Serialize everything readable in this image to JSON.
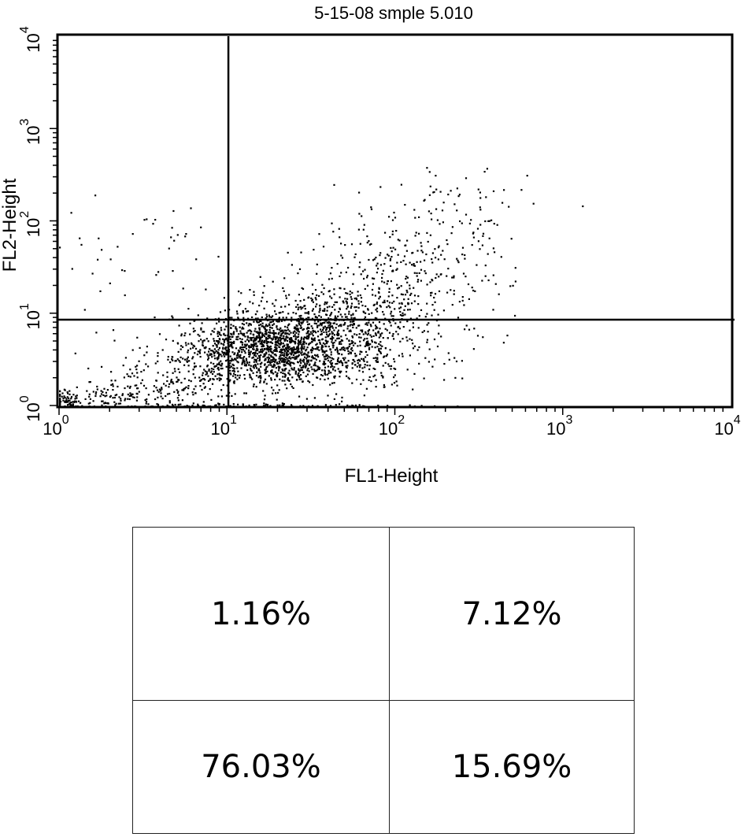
{
  "chart_data": {
    "type": "scatter",
    "title": "5-15-08 smple 5.010",
    "xlabel": "FL1-Height",
    "ylabel": "FL2-Height",
    "xscale": "log",
    "yscale": "log",
    "xlim": [
      1,
      10000
    ],
    "ylim": [
      1,
      10000
    ],
    "x_tick_labels": [
      {
        "base": "10",
        "exp": "0",
        "value": 1
      },
      {
        "base": "10",
        "exp": "1",
        "value": 10
      },
      {
        "base": "10",
        "exp": "2",
        "value": 100
      },
      {
        "base": "10",
        "exp": "3",
        "value": 1000
      },
      {
        "base": "10",
        "exp": "4",
        "value": 10000
      }
    ],
    "y_tick_labels": [
      {
        "base": "10",
        "exp": "0",
        "value": 1
      },
      {
        "base": "10",
        "exp": "1",
        "value": 10
      },
      {
        "base": "10",
        "exp": "2",
        "value": 100
      },
      {
        "base": "10",
        "exp": "3",
        "value": 1000
      },
      {
        "base": "10",
        "exp": "4",
        "value": 10000
      }
    ],
    "quadrant_gates": {
      "x": 10.2,
      "y": 8.5
    },
    "grid": false,
    "legend": "none",
    "marker_color": "#000000",
    "point_count": 3000,
    "point_clusters": [
      {
        "center": [
          17,
          4.5
        ],
        "spread_decades": [
          0.22,
          0.18
        ],
        "count": 950
      },
      {
        "center": [
          40,
          7
        ],
        "spread_decades": [
          0.28,
          0.25
        ],
        "count": 700
      },
      {
        "center": [
          28,
          3
        ],
        "spread_decades": [
          0.35,
          0.15
        ],
        "count": 400
      },
      {
        "center": [
          120,
          25
        ],
        "spread_decades": [
          0.3,
          0.35
        ],
        "count": 330
      },
      {
        "center": [
          7,
          2.5
        ],
        "spread_decades": [
          0.25,
          0.2
        ],
        "count": 220
      },
      {
        "center": [
          2.5,
          1.3
        ],
        "spread_decades": [
          0.2,
          0.08
        ],
        "count": 150
      },
      {
        "center": [
          1.1,
          1.1
        ],
        "spread_decades": [
          0.05,
          0.05
        ],
        "count": 70
      },
      {
        "center": [
          3,
          40
        ],
        "spread_decades": [
          0.3,
          0.4
        ],
        "count": 40
      },
      {
        "center": [
          250,
          140
        ],
        "spread_decades": [
          0.2,
          0.25
        ],
        "count": 60
      },
      {
        "center": [
          15,
          1.02
        ],
        "spread_decades": [
          0.5,
          0.01
        ],
        "count": 80
      }
    ],
    "quadrant_percentages": {
      "upper_left": "1.16%",
      "upper_right": "7.12%",
      "lower_left": "76.03%",
      "lower_right": "15.69%"
    }
  }
}
